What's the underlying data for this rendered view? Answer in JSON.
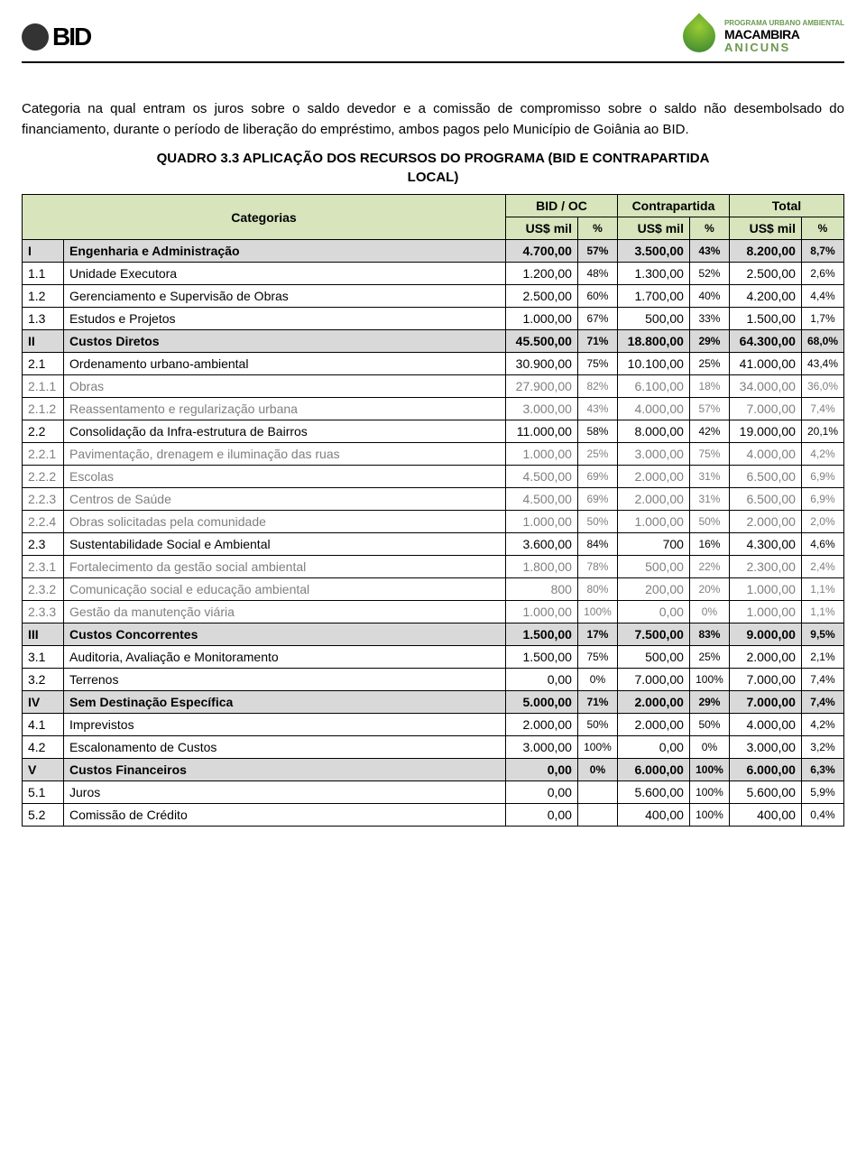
{
  "header": {
    "left_logo_text": "BID",
    "right_logo_line1": "PROGRAMA URBANO AMBIENTAL",
    "right_logo_line2": "MACAMBIRA",
    "right_logo_line3": "ANICUNS"
  },
  "intro": "Categoria na qual entram os juros sobre o saldo devedor e a comissão de compromisso sobre o saldo não desembolsado do financiamento, durante o período de liberação do empréstimo, ambos pagos pelo Município de Goiânia ao BID.",
  "table_title_line1": "QUADRO 3.3 APLICAÇÃO DOS RECURSOS DO PROGRAMA (BID E CONTRAPARTIDA",
  "table_title_line2": "LOCAL)",
  "columns": {
    "categorias": "Categorias",
    "bid": "BID / OC",
    "contra": "Contrapartida",
    "total": "Total",
    "usd": "US$ mil",
    "pct": "%"
  },
  "rows": [
    {
      "id": "I",
      "cat": "Engenharia e Administração",
      "b": "4.700,00",
      "bp": "57%",
      "c": "3.500,00",
      "cp": "43%",
      "t": "8.200,00",
      "tp": "8,7%",
      "style": "shaded bold"
    },
    {
      "id": "1.1",
      "cat": "Unidade Executora",
      "b": "1.200,00",
      "bp": "48%",
      "c": "1.300,00",
      "cp": "52%",
      "t": "2.500,00",
      "tp": "2,6%",
      "style": ""
    },
    {
      "id": "1.2",
      "cat": "Gerenciamento e Supervisão de Obras",
      "b": "2.500,00",
      "bp": "60%",
      "c": "1.700,00",
      "cp": "40%",
      "t": "4.200,00",
      "tp": "4,4%",
      "style": ""
    },
    {
      "id": "1.3",
      "cat": "Estudos e Projetos",
      "b": "1.000,00",
      "bp": "67%",
      "c": "500,00",
      "cp": "33%",
      "t": "1.500,00",
      "tp": "1,7%",
      "style": ""
    },
    {
      "id": "II",
      "cat": "Custos Diretos",
      "b": "45.500,00",
      "bp": "71%",
      "c": "18.800,00",
      "cp": "29%",
      "t": "64.300,00",
      "tp": "68,0%",
      "style": "shaded bold"
    },
    {
      "id": "2.1",
      "cat": "Ordenamento urbano-ambiental",
      "b": "30.900,00",
      "bp": "75%",
      "c": "10.100,00",
      "cp": "25%",
      "t": "41.000,00",
      "tp": "43,4%",
      "style": ""
    },
    {
      "id": "2.1.1",
      "cat": "Obras",
      "b": "27.900,00",
      "bp": "82%",
      "c": "6.100,00",
      "cp": "18%",
      "t": "34.000,00",
      "tp": "36,0%",
      "style": "light"
    },
    {
      "id": "2.1.2",
      "cat": "Reassentamento e regularização urbana",
      "b": "3.000,00",
      "bp": "43%",
      "c": "4.000,00",
      "cp": "57%",
      "t": "7.000,00",
      "tp": "7,4%",
      "style": "light"
    },
    {
      "id": "2.2",
      "cat": "Consolidação da Infra-estrutura de Bairros",
      "b": "11.000,00",
      "bp": "58%",
      "c": "8.000,00",
      "cp": "42%",
      "t": "19.000,00",
      "tp": "20,1%",
      "style": ""
    },
    {
      "id": "2.2.1",
      "cat": "Pavimentação, drenagem e iluminação das ruas",
      "b": "1.000,00",
      "bp": "25%",
      "c": "3.000,00",
      "cp": "75%",
      "t": "4.000,00",
      "tp": "4,2%",
      "style": "light"
    },
    {
      "id": "2.2.2",
      "cat": "Escolas",
      "b": "4.500,00",
      "bp": "69%",
      "c": "2.000,00",
      "cp": "31%",
      "t": "6.500,00",
      "tp": "6,9%",
      "style": "light"
    },
    {
      "id": "2.2.3",
      "cat": "Centros de Saúde",
      "b": "4.500,00",
      "bp": "69%",
      "c": "2.000,00",
      "cp": "31%",
      "t": "6.500,00",
      "tp": "6,9%",
      "style": "light"
    },
    {
      "id": "2.2.4",
      "cat": "Obras solicitadas pela comunidade",
      "b": "1.000,00",
      "bp": "50%",
      "c": "1.000,00",
      "cp": "50%",
      "t": "2.000,00",
      "tp": "2,0%",
      "style": "light"
    },
    {
      "id": "2.3",
      "cat": "Sustentabilidade Social e Ambiental",
      "b": "3.600,00",
      "bp": "84%",
      "c": "700",
      "cp": "16%",
      "t": "4.300,00",
      "tp": "4,6%",
      "style": ""
    },
    {
      "id": "2.3.1",
      "cat": "Fortalecimento da gestão social ambiental",
      "b": "1.800,00",
      "bp": "78%",
      "c": "500,00",
      "cp": "22%",
      "t": "2.300,00",
      "tp": "2,4%",
      "style": "light"
    },
    {
      "id": "2.3.2",
      "cat": "Comunicação social e educação ambiental",
      "b": "800",
      "bp": "80%",
      "c": "200,00",
      "cp": "20%",
      "t": "1.000,00",
      "tp": "1,1%",
      "style": "light"
    },
    {
      "id": "2.3.3",
      "cat": "Gestão da manutenção viária",
      "b": "1.000,00",
      "bp": "100%",
      "c": "0,00",
      "cp": "0%",
      "t": "1.000,00",
      "tp": "1,1%",
      "style": "light"
    },
    {
      "id": "III",
      "cat": "Custos Concorrentes",
      "b": "1.500,00",
      "bp": "17%",
      "c": "7.500,00",
      "cp": "83%",
      "t": "9.000,00",
      "tp": "9,5%",
      "style": "shaded bold"
    },
    {
      "id": "3.1",
      "cat": "Auditoria, Avaliação e Monitoramento",
      "b": "1.500,00",
      "bp": "75%",
      "c": "500,00",
      "cp": "25%",
      "t": "2.000,00",
      "tp": "2,1%",
      "style": ""
    },
    {
      "id": "3.2",
      "cat": "Terrenos",
      "b": "0,00",
      "bp": "0%",
      "c": "7.000,00",
      "cp": "100%",
      "t": "7.000,00",
      "tp": "7,4%",
      "style": ""
    },
    {
      "id": "IV",
      "cat": "Sem Destinação Específica",
      "b": "5.000,00",
      "bp": "71%",
      "c": "2.000,00",
      "cp": "29%",
      "t": "7.000,00",
      "tp": "7,4%",
      "style": "shaded bold"
    },
    {
      "id": "4.1",
      "cat": "Imprevistos",
      "b": "2.000,00",
      "bp": "50%",
      "c": "2.000,00",
      "cp": "50%",
      "t": "4.000,00",
      "tp": "4,2%",
      "style": ""
    },
    {
      "id": "4.2",
      "cat": "Escalonamento de Custos",
      "b": "3.000,00",
      "bp": "100%",
      "c": "0,00",
      "cp": "0%",
      "t": "3.000,00",
      "tp": "3,2%",
      "style": ""
    },
    {
      "id": "V",
      "cat": "Custos Financeiros",
      "b": "0,00",
      "bp": "0%",
      "c": "6.000,00",
      "cp": "100%",
      "t": "6.000,00",
      "tp": "6,3%",
      "style": "shaded bold"
    },
    {
      "id": "5.1",
      "cat": "Juros",
      "b": "0,00",
      "bp": "",
      "c": "5.600,00",
      "cp": "100%",
      "t": "5.600,00",
      "tp": "5,9%",
      "style": ""
    },
    {
      "id": "5.2",
      "cat": "Comissão de Crédito",
      "b": "0,00",
      "bp": "",
      "c": "400,00",
      "cp": "100%",
      "t": "400,00",
      "tp": "0,4%",
      "style": ""
    }
  ]
}
